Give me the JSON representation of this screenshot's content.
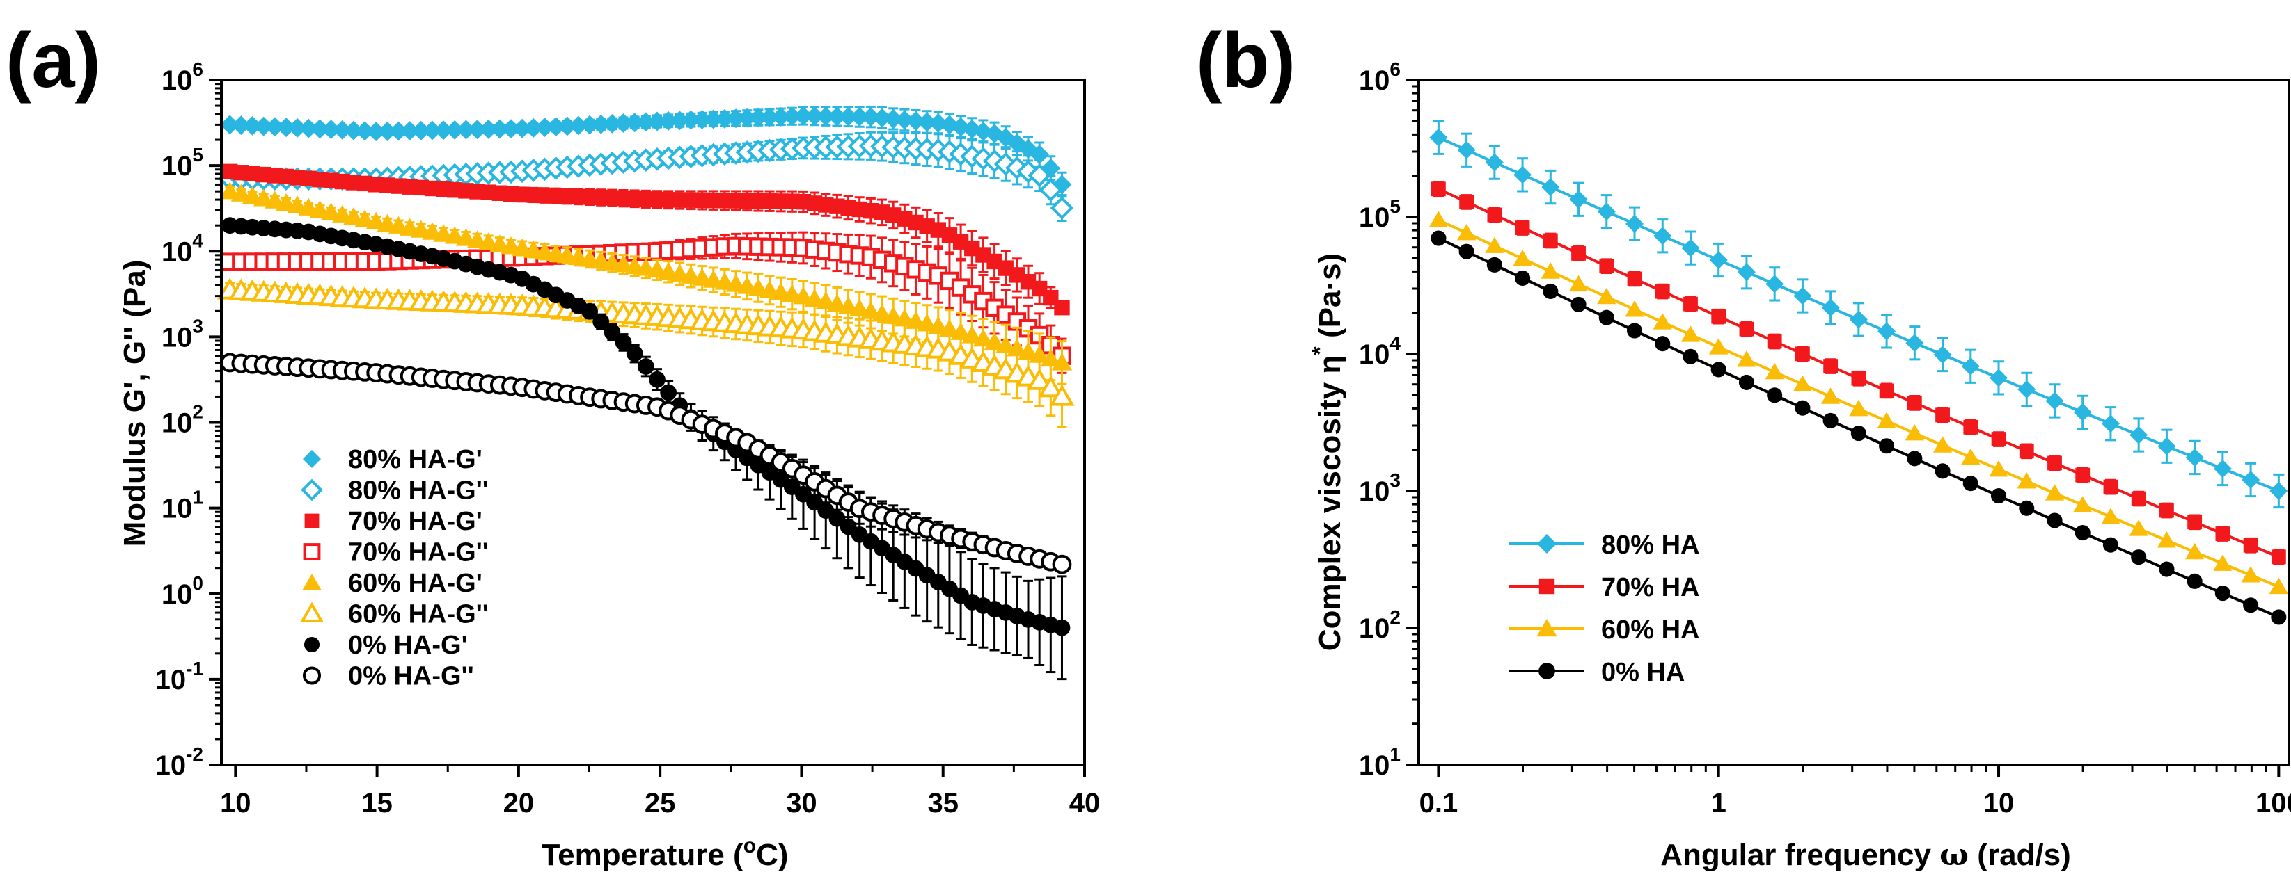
{
  "colors": {
    "c80": "#29b6e0",
    "c70": "#f2191d",
    "c60": "#fbbc05",
    "c0": "#000000"
  },
  "chart_data": [
    {
      "panel": "(a)",
      "type": "scatter",
      "xlabel": "Temperature (°C)",
      "xlabel_parts": [
        "Temperature (",
        "o",
        "C)"
      ],
      "ylabel": "Modulus G', G'' (Pa)",
      "xscale": "linear",
      "yscale": "log",
      "xlim": [
        9.5,
        40
      ],
      "ylim": [
        0.01,
        1000000
      ],
      "xticks": [
        10,
        15,
        20,
        25,
        30,
        35,
        40
      ],
      "yticks": [
        {
          "value": 0.01,
          "base": "10",
          "exp": "-2"
        },
        {
          "value": 0.1,
          "base": "10",
          "exp": "-1"
        },
        {
          "value": 1,
          "base": "10",
          "exp": "0"
        },
        {
          "value": 10,
          "base": "10",
          "exp": "1"
        },
        {
          "value": 100,
          "base": "10",
          "exp": "2"
        },
        {
          "value": 1000,
          "base": "10",
          "exp": "3"
        },
        {
          "value": 10000,
          "base": "10",
          "exp": "4"
        },
        {
          "value": 100000,
          "base": "10",
          "exp": "5"
        },
        {
          "value": 1000000,
          "base": "10",
          "exp": "6"
        }
      ],
      "legend_position": "lower-left",
      "series": [
        {
          "name": "80% HA-G'",
          "color_key": "c80",
          "marker": "diamond",
          "filled": true,
          "x": [
            9.8,
            15,
            20,
            25,
            30,
            32.5,
            35,
            37,
            38.5,
            39.2
          ],
          "y": [
            300000,
            250000,
            270000,
            330000,
            380000,
            370000,
            310000,
            230000,
            130000,
            60000
          ],
          "err": [
            0.05,
            0.05,
            0.05,
            0.07,
            0.1,
            0.12,
            0.13,
            0.13,
            0.14,
            0.14
          ]
        },
        {
          "name": "80% HA-G''",
          "color_key": "c80",
          "marker": "diamond",
          "filled": false,
          "x": [
            9.8,
            15,
            20,
            25,
            30,
            32.5,
            35,
            37,
            38.5,
            39.2
          ],
          "y": [
            70000,
            70000,
            85000,
            120000,
            160000,
            170000,
            150000,
            110000,
            75000,
            32000
          ],
          "err": [
            0.04,
            0.05,
            0.06,
            0.08,
            0.12,
            0.16,
            0.2,
            0.2,
            0.18,
            0.15
          ]
        },
        {
          "name": "70% HA-G'",
          "color_key": "c70",
          "marker": "square",
          "filled": true,
          "x": [
            9.8,
            15,
            20,
            25,
            30,
            33,
            35,
            37,
            38.5,
            39.2
          ],
          "y": [
            85000,
            60000,
            46000,
            40000,
            38000,
            28000,
            17000,
            7000,
            3500,
            2200
          ],
          "err": [
            0.06,
            0.07,
            0.08,
            0.1,
            0.12,
            0.15,
            0.2,
            0.2,
            0.18,
            0.05
          ]
        },
        {
          "name": "70% HA-G''",
          "color_key": "c70",
          "marker": "square",
          "filled": false,
          "x": [
            9.8,
            15,
            20,
            25,
            27.5,
            30,
            32.5,
            35,
            37,
            38.5,
            39.2
          ],
          "y": [
            7500,
            7600,
            8500,
            10000,
            11500,
            11000,
            8500,
            5000,
            2000,
            1000,
            600
          ],
          "err": [
            0.05,
            0.05,
            0.07,
            0.1,
            0.14,
            0.18,
            0.25,
            0.32,
            0.3,
            0.25,
            0.2
          ]
        },
        {
          "name": "60% HA-G'",
          "color_key": "c60",
          "marker": "triangle",
          "filled": true,
          "x": [
            9.8,
            15,
            20,
            25,
            30,
            35,
            38.5,
            39.2
          ],
          "y": [
            50000,
            22000,
            11000,
            6000,
            3000,
            1300,
            600,
            500
          ],
          "err": [
            0.05,
            0.06,
            0.08,
            0.12,
            0.18,
            0.22,
            0.25,
            0.25
          ]
        },
        {
          "name": "60% HA-G''",
          "color_key": "c60",
          "marker": "triangle",
          "filled": false,
          "x": [
            9.8,
            15,
            20,
            25,
            30,
            35,
            38.5,
            39.2
          ],
          "y": [
            3500,
            2700,
            2300,
            1700,
            1200,
            700,
            300,
            200
          ],
          "err": [
            0.08,
            0.08,
            0.1,
            0.15,
            0.2,
            0.25,
            0.3,
            0.35
          ]
        },
        {
          "name": "0% HA-G'",
          "color_key": "c0",
          "marker": "circle",
          "filled": true,
          "x": [
            9.8,
            12.5,
            15,
            17.5,
            20,
            22.5,
            24,
            26,
            28,
            30,
            32,
            34,
            36,
            38,
            39.2
          ],
          "y": [
            20000,
            17000,
            12000,
            8000,
            5000,
            2000,
            700,
            120,
            40,
            15,
            5,
            2,
            0.8,
            0.5,
            0.4
          ],
          "err": [
            0.03,
            0.03,
            0.04,
            0.05,
            0.06,
            0.08,
            0.1,
            0.15,
            0.25,
            0.4,
            0.5,
            0.55,
            0.5,
            0.45,
            0.6
          ]
        },
        {
          "name": "0% HA-G''",
          "color_key": "c0",
          "marker": "circle",
          "filled": false,
          "x": [
            9.8,
            15,
            20,
            25,
            28,
            30,
            32,
            35,
            37.5,
            39.2
          ],
          "y": [
            500,
            380,
            260,
            150,
            60,
            25,
            10,
            5,
            3,
            2.2
          ],
          "err": [
            0.02,
            0.02,
            0.03,
            0.04,
            0.08,
            0.15,
            0.18,
            0.12,
            0.08,
            0.06
          ]
        }
      ]
    },
    {
      "panel": "(b)",
      "type": "line",
      "xlabel": "Angular frequency ω (rad/s)",
      "xlabel_parts": [
        "Angular frequency ",
        "ω",
        " (rad/s)"
      ],
      "ylabel": "Complex viscosity η* (Pa·s)",
      "ylabel_parts": [
        "Complex viscosity η",
        "*",
        " (Pa·s)"
      ],
      "xscale": "log",
      "yscale": "log",
      "xlim": [
        0.085,
        110
      ],
      "ylim": [
        10,
        1000000
      ],
      "xticks": [
        {
          "value": 0.1,
          "label": "0.1"
        },
        {
          "value": 1,
          "label": "1"
        },
        {
          "value": 10,
          "label": "10"
        },
        {
          "value": 100,
          "label": "100"
        }
      ],
      "yticks": [
        {
          "value": 10,
          "base": "10",
          "exp": "1"
        },
        {
          "value": 100,
          "base": "10",
          "exp": "2"
        },
        {
          "value": 1000,
          "base": "10",
          "exp": "3"
        },
        {
          "value": 10000,
          "base": "10",
          "exp": "4"
        },
        {
          "value": 100000,
          "base": "10",
          "exp": "5"
        },
        {
          "value": 1000000,
          "base": "10",
          "exp": "6"
        }
      ],
      "legend_position": "lower-left",
      "series": [
        {
          "name": "80% HA",
          "color_key": "c80",
          "marker": "diamond",
          "y_start": 380000,
          "y_end": 1000,
          "err": 0.12
        },
        {
          "name": "70% HA",
          "color_key": "c70",
          "marker": "square",
          "y_start": 160000,
          "y_end": 330,
          "err": 0.05
        },
        {
          "name": "60% HA",
          "color_key": "c60",
          "marker": "triangle",
          "y_start": 95000,
          "y_end": 200,
          "err": 0.03
        },
        {
          "name": "0% HA",
          "color_key": "c0",
          "marker": "circle",
          "y_start": 70000,
          "y_end": 120,
          "err": 0.02
        }
      ]
    }
  ]
}
